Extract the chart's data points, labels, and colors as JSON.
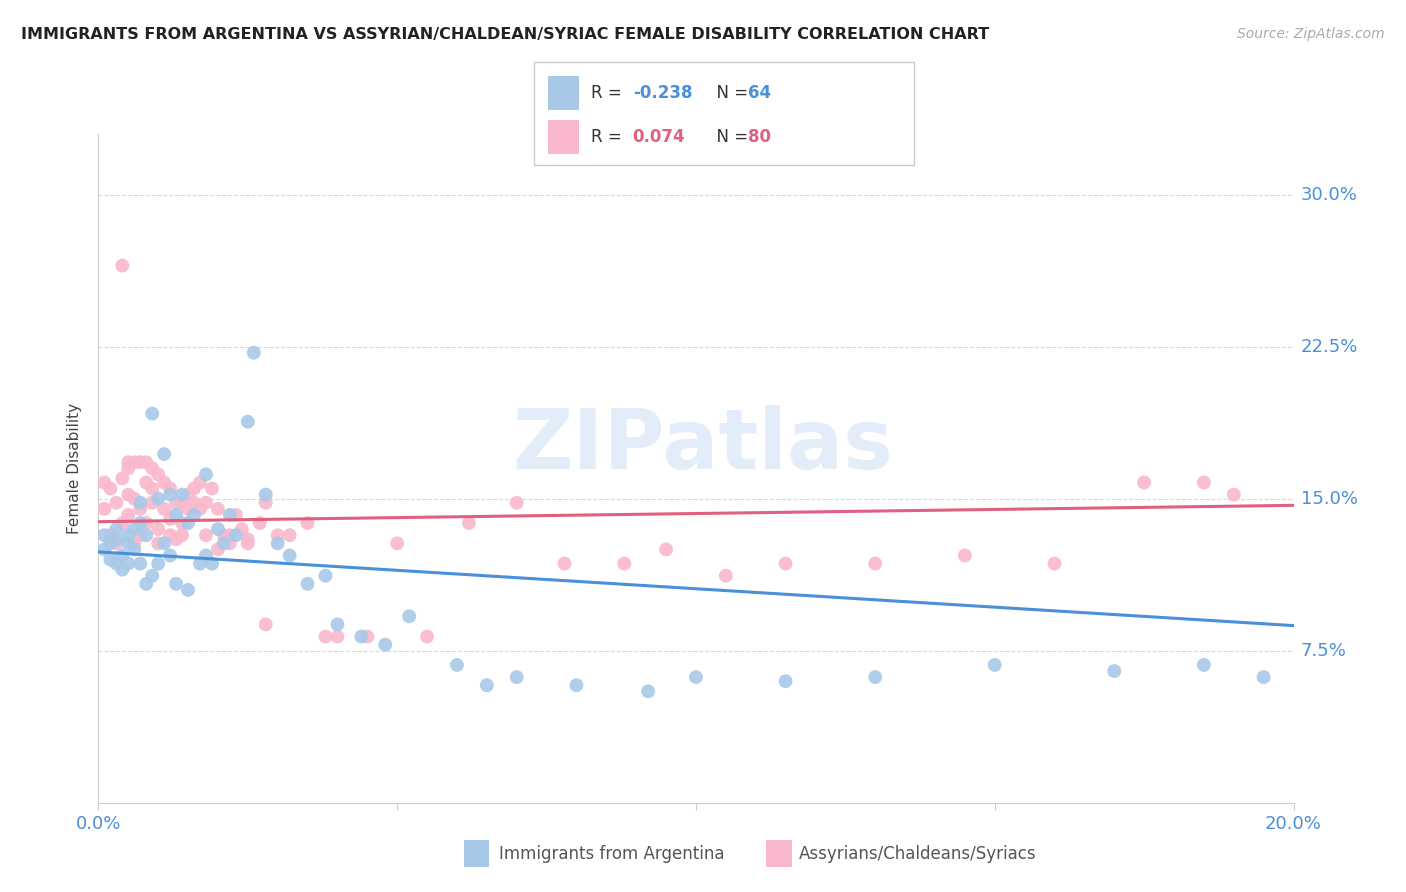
{
  "title": "IMMIGRANTS FROM ARGENTINA VS ASSYRIAN/CHALDEAN/SYRIAC FEMALE DISABILITY CORRELATION CHART",
  "source": "Source: ZipAtlas.com",
  "ylabel": "Female Disability",
  "yticks_labels": [
    "7.5%",
    "15.0%",
    "22.5%",
    "30.0%"
  ],
  "ytick_vals": [
    0.075,
    0.15,
    0.225,
    0.3
  ],
  "xlim": [
    0.0,
    0.2
  ],
  "ylim": [
    0.0,
    0.33
  ],
  "blue_color": "#a8c8e8",
  "pink_color": "#f9b8cc",
  "blue_line_color": "#4a90d9",
  "pink_line_color": "#e06080",
  "blue_R": -0.238,
  "blue_N": 64,
  "pink_R": 0.074,
  "pink_N": 80,
  "legend_label_blue": "Immigrants from Argentina",
  "legend_label_pink": "Assyrians/Chaldeans/Syriacs",
  "blue_scatter_x": [
    0.001,
    0.001,
    0.002,
    0.002,
    0.003,
    0.003,
    0.003,
    0.004,
    0.004,
    0.005,
    0.005,
    0.005,
    0.006,
    0.006,
    0.007,
    0.007,
    0.007,
    0.008,
    0.008,
    0.009,
    0.009,
    0.01,
    0.01,
    0.011,
    0.011,
    0.012,
    0.012,
    0.013,
    0.013,
    0.014,
    0.015,
    0.015,
    0.016,
    0.017,
    0.018,
    0.018,
    0.019,
    0.02,
    0.021,
    0.022,
    0.023,
    0.025,
    0.026,
    0.028,
    0.03,
    0.032,
    0.035,
    0.038,
    0.04,
    0.044,
    0.048,
    0.052,
    0.06,
    0.065,
    0.07,
    0.08,
    0.092,
    0.1,
    0.115,
    0.13,
    0.15,
    0.17,
    0.185,
    0.195
  ],
  "blue_scatter_y": [
    0.125,
    0.132,
    0.12,
    0.128,
    0.118,
    0.13,
    0.135,
    0.122,
    0.115,
    0.128,
    0.132,
    0.118,
    0.125,
    0.135,
    0.138,
    0.118,
    0.148,
    0.132,
    0.108,
    0.192,
    0.112,
    0.15,
    0.118,
    0.172,
    0.128,
    0.152,
    0.122,
    0.142,
    0.108,
    0.152,
    0.138,
    0.105,
    0.142,
    0.118,
    0.162,
    0.122,
    0.118,
    0.135,
    0.128,
    0.142,
    0.132,
    0.188,
    0.222,
    0.152,
    0.128,
    0.122,
    0.108,
    0.112,
    0.088,
    0.082,
    0.078,
    0.092,
    0.068,
    0.058,
    0.062,
    0.058,
    0.055,
    0.062,
    0.06,
    0.062,
    0.068,
    0.065,
    0.068,
    0.062
  ],
  "pink_scatter_x": [
    0.001,
    0.001,
    0.002,
    0.002,
    0.003,
    0.003,
    0.004,
    0.004,
    0.005,
    0.005,
    0.005,
    0.006,
    0.006,
    0.007,
    0.007,
    0.008,
    0.008,
    0.009,
    0.009,
    0.01,
    0.01,
    0.011,
    0.011,
    0.012,
    0.012,
    0.013,
    0.013,
    0.014,
    0.014,
    0.015,
    0.015,
    0.016,
    0.017,
    0.017,
    0.018,
    0.019,
    0.02,
    0.021,
    0.022,
    0.023,
    0.024,
    0.025,
    0.027,
    0.028,
    0.03,
    0.032,
    0.035,
    0.038,
    0.04,
    0.045,
    0.05,
    0.055,
    0.062,
    0.07,
    0.078,
    0.088,
    0.095,
    0.105,
    0.115,
    0.13,
    0.145,
    0.16,
    0.175,
    0.185,
    0.004,
    0.005,
    0.006,
    0.007,
    0.008,
    0.009,
    0.01,
    0.012,
    0.014,
    0.016,
    0.018,
    0.02,
    0.022,
    0.025,
    0.028,
    0.19
  ],
  "pink_scatter_y": [
    0.145,
    0.158,
    0.132,
    0.155,
    0.148,
    0.128,
    0.16,
    0.138,
    0.152,
    0.142,
    0.165,
    0.128,
    0.15,
    0.145,
    0.132,
    0.158,
    0.138,
    0.155,
    0.148,
    0.162,
    0.135,
    0.158,
    0.145,
    0.155,
    0.14,
    0.148,
    0.13,
    0.148,
    0.138,
    0.152,
    0.145,
    0.155,
    0.145,
    0.158,
    0.148,
    0.155,
    0.145,
    0.132,
    0.128,
    0.142,
    0.135,
    0.13,
    0.138,
    0.148,
    0.132,
    0.132,
    0.138,
    0.082,
    0.082,
    0.082,
    0.128,
    0.082,
    0.138,
    0.148,
    0.118,
    0.118,
    0.125,
    0.112,
    0.118,
    0.118,
    0.122,
    0.118,
    0.158,
    0.158,
    0.265,
    0.168,
    0.168,
    0.168,
    0.168,
    0.165,
    0.128,
    0.132,
    0.132,
    0.148,
    0.132,
    0.125,
    0.132,
    0.128,
    0.088,
    0.152
  ]
}
